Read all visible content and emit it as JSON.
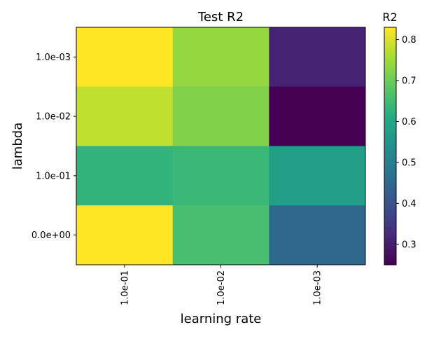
{
  "chart_data": {
    "type": "heatmap",
    "title": "Test R2",
    "xlabel": "learning rate",
    "ylabel": "lambda",
    "x_categories": [
      "1.0e-01",
      "1.0e-02",
      "1.0e-03"
    ],
    "y_categories": [
      "1.0e-03",
      "1.0e-02",
      "1.0e-01",
      "0.0e+00"
    ],
    "values": [
      [
        0.83,
        0.74,
        0.31
      ],
      [
        0.78,
        0.72,
        0.25
      ],
      [
        0.63,
        0.64,
        0.58
      ],
      [
        0.83,
        0.66,
        0.45
      ]
    ],
    "colorbar": {
      "label": "R2",
      "min": 0.25,
      "max": 0.83,
      "ticks": [
        0.3,
        0.4,
        0.5,
        0.6,
        0.7,
        0.8
      ],
      "tick_labels": [
        "0.3",
        "0.4",
        "0.5",
        "0.6",
        "0.7",
        "0.8"
      ],
      "colormap": "viridis"
    }
  }
}
